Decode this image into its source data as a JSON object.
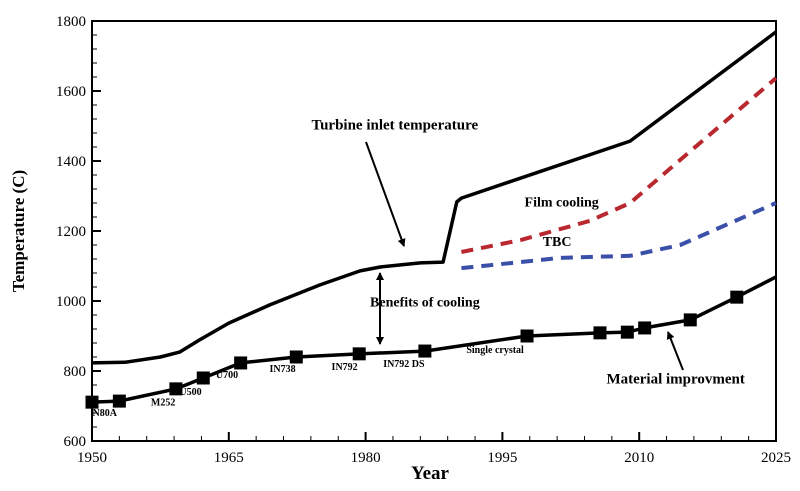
{
  "chart_data": {
    "type": "line",
    "title": "",
    "xlabel": "Year",
    "ylabel": "Temperature (C)",
    "xlim": [
      1950,
      2025
    ],
    "ylim": [
      600,
      1800
    ],
    "xticks": [
      "1950",
      "1965",
      "1980",
      "1995",
      "2010",
      "2025"
    ],
    "yticks": [
      "600",
      "800",
      "1000",
      "1200",
      "1400",
      "1600",
      "1800"
    ],
    "grid": false,
    "series": [
      {
        "name": "Turbine inlet temperature",
        "color": "#000000",
        "style": "solid",
        "markers": false,
        "x": [
          1950,
          1953.6,
          1957.5,
          1959.6,
          1961.8,
          1965,
          1969.5,
          1975,
          1979.4,
          1981.6,
          1986,
          1988.5,
          1990,
          1990.5,
          2009,
          2025
        ],
        "y": [
          823,
          825,
          840,
          854,
          889,
          937,
          989,
          1046,
          1086,
          1097,
          1109,
          1111,
          1283,
          1294,
          1457,
          1769
        ]
      },
      {
        "name": "Film cooling",
        "color": "#b8282e",
        "style": "dashed",
        "markers": false,
        "x": [
          1990.5,
          1997,
          2004.6,
          2009,
          2014.5,
          2025
        ],
        "y": [
          1140,
          1174,
          1229,
          1280,
          1403,
          1637
        ]
      },
      {
        "name": "TBC",
        "color": "#3a4fa8",
        "style": "dashed",
        "markers": false,
        "x": [
          1990.5,
          1997,
          2001.3,
          2009,
          2014.5,
          2025
        ],
        "y": [
          1094,
          1111,
          1123,
          1129,
          1160,
          1280
        ]
      },
      {
        "name": "Material improvment",
        "color": "#000000",
        "style": "solid",
        "markers": true,
        "x": [
          1950,
          1953,
          1959.2,
          1962.2,
          1966.3,
          1972.4,
          1979.3,
          1986.5,
          1997.7,
          2005.7,
          2008.7,
          2010.6,
          2015.6,
          2020.7
        ],
        "y": [
          711,
          714,
          749,
          780,
          823,
          840,
          849,
          857,
          900,
          909,
          911,
          923,
          946,
          1011
        ],
        "line_end": {
          "x": 2025,
          "y": 1069
        }
      }
    ],
    "point_labels": [
      {
        "text": "N80A",
        "x": 1951.4,
        "y": 672
      },
      {
        "text": "M252",
        "x": 1957.8,
        "y": 702
      },
      {
        "text": "U500",
        "x": 1960.8,
        "y": 732
      },
      {
        "text": "U700",
        "x": 1964.8,
        "y": 780
      },
      {
        "text": "IN738",
        "x": 1970.9,
        "y": 797
      },
      {
        "text": "IN792",
        "x": 1977.7,
        "y": 803
      },
      {
        "text": "IN792 DS",
        "x": 1984.2,
        "y": 812
      },
      {
        "text": "Single crystal",
        "x": 1994.2,
        "y": 852
      }
    ],
    "annotations": [
      {
        "text": "Turbine inlet temperature",
        "x": 1983.2,
        "y": 1490
      },
      {
        "text": "Film cooling",
        "x": 2001.5,
        "y": 1270
      },
      {
        "text": "TBC",
        "x": 2001,
        "y": 1157
      },
      {
        "text": "Benefits of cooling",
        "x": 1986.5,
        "y": 985
      },
      {
        "text": "Material improvment",
        "x": 2014,
        "y": 765
      }
    ]
  }
}
